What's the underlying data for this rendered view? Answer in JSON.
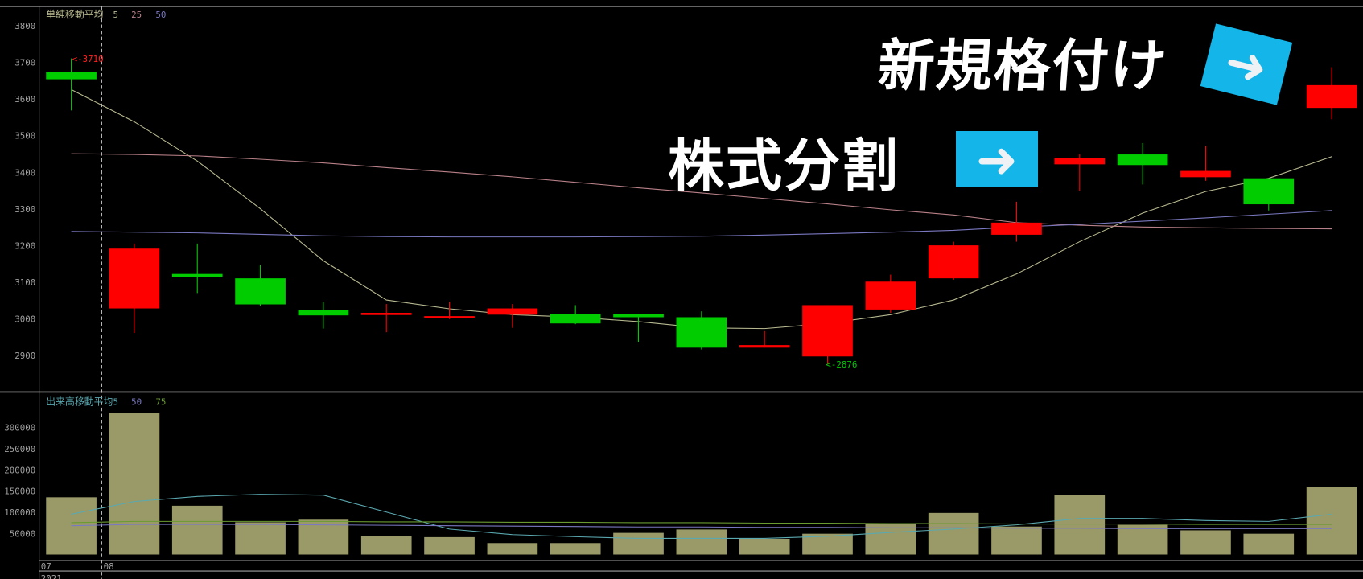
{
  "chart_data": [
    {
      "type": "candlestick",
      "legend": {
        "title": "単純移動平均",
        "items": [
          {
            "label": "5",
            "color": "#b8b890"
          },
          {
            "label": "25",
            "color": "#b88088"
          },
          {
            "label": "50",
            "color": "#7a78c0"
          }
        ]
      },
      "y_ticks": [
        "3800",
        "3700",
        "3600",
        "3500",
        "3400",
        "3300",
        "3200",
        "3100",
        "3000",
        "2900"
      ],
      "ylim": [
        2840,
        3850
      ],
      "colors": {
        "up": "#00cc00",
        "down": "#ff0000"
      },
      "candles": [
        {
          "o": 3653,
          "h": 3710,
          "l": 3568,
          "c": 3674
        },
        {
          "o": 3191,
          "h": 3205,
          "l": 2961,
          "c": 3028
        },
        {
          "o": 3113,
          "h": 3205,
          "l": 3070,
          "c": 3122
        },
        {
          "o": 3039,
          "h": 3146,
          "l": 3035,
          "c": 3110
        },
        {
          "o": 3009,
          "h": 3046,
          "l": 2973,
          "c": 3023
        },
        {
          "o": 3016,
          "h": 3040,
          "l": 2963,
          "c": 3012
        },
        {
          "o": 3007,
          "h": 3046,
          "l": 2999,
          "c": 3003
        },
        {
          "o": 3028,
          "h": 3040,
          "l": 2975,
          "c": 3011
        },
        {
          "o": 2987,
          "h": 3037,
          "l": 2985,
          "c": 3013
        },
        {
          "o": 3004,
          "h": 3013,
          "l": 2937,
          "c": 3013
        },
        {
          "o": 2921,
          "h": 3020,
          "l": 2916,
          "c": 3004
        },
        {
          "o": 2928,
          "h": 2968,
          "l": 2921,
          "c": 2921
        },
        {
          "o": 3037,
          "h": 3037,
          "l": 2876,
          "c": 2897
        },
        {
          "o": 3101,
          "h": 3120,
          "l": 3016,
          "c": 3025
        },
        {
          "o": 3200,
          "h": 3210,
          "l": 3106,
          "c": 3110
        },
        {
          "o": 3262,
          "h": 3319,
          "l": 3210,
          "c": 3229
        },
        {
          "o": 3438,
          "h": 3448,
          "l": 3348,
          "c": 3421
        },
        {
          "o": 3419,
          "h": 3479,
          "l": 3366,
          "c": 3448
        },
        {
          "o": 3403,
          "h": 3471,
          "l": 3376,
          "c": 3386
        },
        {
          "o": 3312,
          "h": 3383,
          "l": 3295,
          "c": 3383
        },
        {
          "o": 3637,
          "h": 3686,
          "l": 3544,
          "c": 3575
        }
      ],
      "moving_averages": [
        {
          "name": "5",
          "values": [
            3625,
            3537,
            3430,
            3300,
            3158,
            3051,
            3027,
            3011,
            3004,
            2992,
            2975,
            2973,
            2987,
            3011,
            3051,
            3122,
            3210,
            3288,
            3347,
            3383,
            3442
          ]
        },
        {
          "name": "25",
          "values": [
            3450,
            3448,
            3444,
            3435,
            3425,
            3412,
            3400,
            3387,
            3372,
            3357,
            3343,
            3328,
            3313,
            3297,
            3283,
            3262,
            3255,
            3250,
            3248,
            3246,
            3245
          ]
        },
        {
          "name": "50",
          "values": [
            3238,
            3236,
            3234,
            3230,
            3226,
            3224,
            3223,
            3223,
            3223,
            3224,
            3225,
            3228,
            3232,
            3236,
            3241,
            3250,
            3257,
            3266,
            3275,
            3285,
            3295
          ]
        }
      ],
      "annotations": {
        "high": "<-3710",
        "low": "<-2876"
      }
    },
    {
      "type": "bar",
      "legend": {
        "title": "出来高移動平均",
        "items": [
          {
            "label": "5",
            "color": "#5aa8b0"
          },
          {
            "label": "50",
            "color": "#7a78c0"
          },
          {
            "label": "75",
            "color": "#6a9a30"
          }
        ]
      },
      "y_ticks": [
        "300000",
        "250000",
        "200000",
        "150000",
        "100000",
        "50000"
      ],
      "ylim": [
        0,
        340000
      ],
      "bar_color": "#9a9a68",
      "values": [
        135000,
        334000,
        115000,
        76000,
        82000,
        43000,
        41000,
        27000,
        27000,
        51000,
        59000,
        37000,
        49000,
        72000,
        98000,
        66000,
        141000,
        70000,
        57000,
        49000,
        160000
      ],
      "moving_averages": [
        {
          "name": "5",
          "values": [
            95000,
            125000,
            137000,
            142000,
            140000,
            100000,
            60000,
            47000,
            42000,
            38000,
            38000,
            38000,
            43000,
            52000,
            60000,
            70000,
            85000,
            85000,
            80000,
            78000,
            95000
          ]
        },
        {
          "name": "50",
          "values": [
            68000,
            71000,
            71000,
            71000,
            70000,
            69000,
            68000,
            67000,
            66000,
            65000,
            65000,
            64000,
            64000,
            63000,
            63000,
            62000,
            62000,
            61000,
            61000,
            61000,
            61000
          ]
        },
        {
          "name": "75",
          "values": [
            75000,
            78000,
            78000,
            78000,
            78000,
            77000,
            77000,
            76000,
            76000,
            75000,
            75000,
            74000,
            74000,
            73000,
            73000,
            72000,
            72000,
            72000,
            71000,
            71000,
            71000
          ]
        }
      ],
      "x_ticks": [
        "07",
        "08"
      ],
      "year": "2021"
    }
  ],
  "overlay": {
    "new_listing": "新規格付け",
    "split": "株式分割",
    "arrow": "➜",
    "arrow_color": "#14b6ea"
  }
}
